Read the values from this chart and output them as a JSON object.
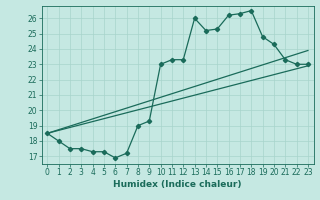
{
  "xlabel": "Humidex (Indice chaleur)",
  "bg_color": "#c5e8e2",
  "line_color": "#1a6b5a",
  "grid_color": "#a8d4cc",
  "xlim": [
    -0.5,
    23.5
  ],
  "ylim": [
    16.5,
    26.8
  ],
  "xticks": [
    0,
    1,
    2,
    3,
    4,
    5,
    6,
    7,
    8,
    9,
    10,
    11,
    12,
    13,
    14,
    15,
    16,
    17,
    18,
    19,
    20,
    21,
    22,
    23
  ],
  "yticks": [
    17,
    18,
    19,
    20,
    21,
    22,
    23,
    24,
    25,
    26
  ],
  "series1_x": [
    0,
    1,
    2,
    3,
    4,
    5,
    6,
    7,
    8,
    9,
    10,
    11,
    12,
    13,
    14,
    15,
    16,
    17,
    18,
    19,
    20,
    21,
    22,
    23
  ],
  "series1_y": [
    18.5,
    18.0,
    17.5,
    17.5,
    17.3,
    17.3,
    16.9,
    17.2,
    19.0,
    19.3,
    23.0,
    23.3,
    23.3,
    26.0,
    25.2,
    25.3,
    26.2,
    26.3,
    26.5,
    24.8,
    24.3,
    23.3,
    23.0,
    23.0
  ],
  "series2_x": [
    0,
    23
  ],
  "series2_y": [
    18.5,
    22.9
  ],
  "series3_x": [
    0,
    23
  ],
  "series3_y": [
    18.5,
    23.9
  ],
  "tick_fontsize": 5.5,
  "xlabel_fontsize": 6.5
}
